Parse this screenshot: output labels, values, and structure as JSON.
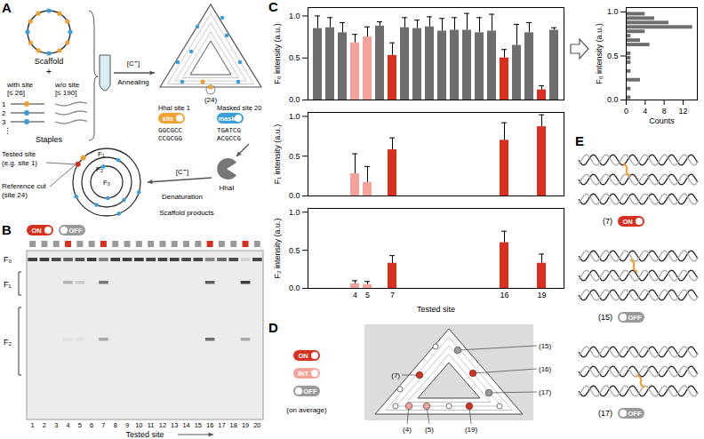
{
  "chart_data": [
    {
      "type": "bar",
      "ylabel": "F₀ intensity (a.u.)",
      "categories": [
        null,
        null,
        null,
        4,
        5,
        null,
        7,
        null,
        null,
        null,
        null,
        null,
        null,
        null,
        null,
        16,
        null,
        null,
        19,
        null
      ],
      "values": [
        0.85,
        0.86,
        0.8,
        0.68,
        0.75,
        0.88,
        0.53,
        0.86,
        0.85,
        0.87,
        0.82,
        0.83,
        0.83,
        0.8,
        0.82,
        0.5,
        0.65,
        0.8,
        0.12,
        0.83
      ],
      "errors": [
        0.15,
        0.12,
        0.12,
        0.1,
        0.12,
        0.05,
        0.15,
        0.12,
        0.1,
        0.12,
        0.15,
        0.15,
        0.2,
        0.18,
        0.2,
        0.1,
        0.25,
        0.12,
        0.05,
        0.03
      ],
      "colors": [
        "#6e6e6e",
        "#6e6e6e",
        "#6e6e6e",
        "#f4a39a",
        "#f4a39a",
        "#6e6e6e",
        "#d7301f",
        "#6e6e6e",
        "#6e6e6e",
        "#6e6e6e",
        "#6e6e6e",
        "#6e6e6e",
        "#6e6e6e",
        "#6e6e6e",
        "#6e6e6e",
        "#d7301f",
        "#6e6e6e",
        "#6e6e6e",
        "#d7301f",
        "#6e6e6e"
      ],
      "ylim": [
        0,
        1.1
      ],
      "yticks": [
        {
          "value": 0,
          "label": "0.0"
        },
        {
          "value": 0.5,
          "label": "0.5"
        },
        {
          "value": 1,
          "label": "1.0"
        }
      ],
      "tick_labels": "y"
    },
    {
      "type": "bar",
      "ylabel": "F₁ intensity (a.u.)",
      "categories": [
        null,
        null,
        null,
        4,
        5,
        null,
        7,
        null,
        null,
        null,
        null,
        null,
        null,
        null,
        null,
        16,
        null,
        null,
        19,
        null
      ],
      "values": [
        null,
        null,
        null,
        0.28,
        0.17,
        null,
        0.58,
        null,
        null,
        null,
        null,
        null,
        null,
        null,
        null,
        0.7,
        null,
        null,
        0.87,
        null
      ],
      "errors": [
        null,
        null,
        null,
        0.25,
        0.2,
        null,
        0.15,
        null,
        null,
        null,
        null,
        null,
        null,
        null,
        null,
        0.22,
        null,
        null,
        0.15,
        null
      ],
      "colors": [
        null,
        null,
        null,
        "#f4a39a",
        "#f4a39a",
        null,
        "#d7301f",
        null,
        null,
        null,
        null,
        null,
        null,
        null,
        null,
        "#d7301f",
        null,
        null,
        "#d7301f",
        null
      ],
      "ylim": [
        0,
        1.05
      ],
      "yticks": [
        {
          "value": 0,
          "label": "0.0"
        },
        {
          "value": 0.5,
          "label": "0.5"
        },
        {
          "value": 1,
          "label": "1.0"
        }
      ],
      "tick_labels": "y"
    },
    {
      "type": "bar",
      "ylabel": "F₂ intensity (a.u.)",
      "xlabel": "Tested site",
      "categories": [
        null,
        null,
        null,
        4,
        5,
        null,
        7,
        null,
        null,
        null,
        null,
        null,
        null,
        null,
        null,
        16,
        null,
        null,
        19,
        null
      ],
      "values": [
        null,
        null,
        null,
        0.06,
        0.05,
        null,
        0.33,
        null,
        null,
        null,
        null,
        null,
        null,
        null,
        null,
        0.6,
        null,
        null,
        0.33,
        null
      ],
      "errors": [
        null,
        null,
        null,
        0.04,
        0.04,
        null,
        0.1,
        null,
        null,
        null,
        null,
        null,
        null,
        null,
        null,
        0.15,
        null,
        null,
        0.12,
        null
      ],
      "colors": [
        null,
        null,
        null,
        "#f4a39a",
        "#f4a39a",
        null,
        "#d7301f",
        null,
        null,
        null,
        null,
        null,
        null,
        null,
        null,
        "#d7301f",
        null,
        null,
        "#d7301f",
        null
      ],
      "ylim": [
        0,
        1.05
      ],
      "yticks": [
        {
          "value": 0,
          "label": "0.0"
        },
        {
          "value": 0.5,
          "label": "0.5"
        },
        {
          "value": 1,
          "label": "1.0"
        }
      ],
      "tick_labels": true
    },
    {
      "type": "histogram",
      "orientation": "horizontal",
      "xlabel": "Counts",
      "ylabel": "F₀ intensity (a.u.)",
      "bins": [
        0,
        0.05,
        0.1,
        0.15,
        0.2,
        0.25,
        0.3,
        0.35,
        0.4,
        0.45,
        0.5,
        0.55,
        0.6,
        0.65,
        0.7,
        0.75,
        0.8,
        0.85,
        0.9,
        0.95,
        1.0
      ],
      "counts": [
        1,
        0,
        1,
        0,
        3,
        0,
        1,
        0,
        1,
        1,
        1,
        0,
        5,
        3,
        1,
        4,
        14,
        9,
        6,
        4
      ],
      "color": "#6e6e6e",
      "xlim": [
        0,
        15
      ],
      "xticks": [
        0,
        4,
        8,
        12
      ],
      "ylim": [
        0,
        1.05
      ],
      "yticks": [
        {
          "value": 0,
          "label": "0.0"
        },
        {
          "value": 0.5,
          "label": "0.5"
        },
        {
          "value": 1,
          "label": "1.0"
        }
      ]
    }
  ],
  "figure": {
    "colors": {
      "ON": "#d7301f",
      "INT": "#f4a39a",
      "OFF": "#9a9a9a",
      "site": "#f0a030",
      "mask": "#3a9fd8"
    },
    "A": {
      "letter": "A",
      "scaffold": "Scaffold",
      "plus": "+",
      "staples": "Staples",
      "with_site": {
        "label": "with site",
        "count": "[≤ 26]"
      },
      "without_site": {
        "label": "w/o site",
        "count": "[≤ 190]"
      },
      "staple_numbers": [
        "1",
        "2",
        "3",
        "⋮"
      ],
      "annealing": {
        "condition": "[C⁺]",
        "label": "Annealing"
      },
      "reference_site": "(24)",
      "site_tag": {
        "caption": "HhaI site 1",
        "label": "site",
        "top_strand": "GGCGCC",
        "bottom_strand": "CCGCGG"
      },
      "mask_tag": {
        "caption": "Masked site 20",
        "label": "mask",
        "top_strand": "TGATCG",
        "bottom_strand": "ACGCCG"
      },
      "enzyme": "HhaI",
      "denaturation": {
        "condition": "[C⁺]",
        "label": "Denaturation"
      },
      "tested_site": {
        "label": "Tested site",
        "example": "(e.g. site 1)"
      },
      "reference_cut": {
        "label": "Reference cut",
        "site": "(site 24)"
      },
      "fragments": [
        "F₁",
        "F₂",
        "F₀"
      ],
      "products": "Scaffold products"
    },
    "B": {
      "letter": "B",
      "legend": [
        "ON",
        "OFF"
      ],
      "band_labels": [
        "F₀",
        "F₁",
        "F₂"
      ],
      "lanes": [
        1,
        2,
        3,
        4,
        5,
        6,
        7,
        8,
        9,
        10,
        11,
        12,
        13,
        14,
        15,
        16,
        17,
        18,
        19,
        20
      ],
      "lane_status": [
        "OFF",
        "OFF",
        "OFF",
        "ON",
        "OFF",
        "OFF",
        "ON",
        "OFF",
        "OFF",
        "OFF",
        "OFF",
        "OFF",
        "OFF",
        "OFF",
        "OFF",
        "ON",
        "OFF",
        "OFF",
        "ON",
        "OFF"
      ],
      "xlabel": "Tested site"
    },
    "C": {
      "letter": "C"
    },
    "D": {
      "letter": "D",
      "legend": [
        "ON",
        "INT",
        "OFF"
      ],
      "legend_note": "(on average)",
      "sites": [
        {
          "label": "(4)",
          "status": "INT"
        },
        {
          "label": "(5)",
          "status": "INT"
        },
        {
          "label": "(7)",
          "status": "ON"
        },
        {
          "label": "(15)",
          "status": "OFF"
        },
        {
          "label": "(16)",
          "status": "ON"
        },
        {
          "label": "(17)",
          "status": "OFF"
        },
        {
          "label": "(19)",
          "status": "ON"
        }
      ]
    },
    "E": {
      "letter": "E",
      "items": [
        {
          "site": "(7)",
          "status": "ON"
        },
        {
          "site": "(15)",
          "status": "OFF"
        },
        {
          "site": "(17)",
          "status": "OFF"
        }
      ]
    }
  }
}
